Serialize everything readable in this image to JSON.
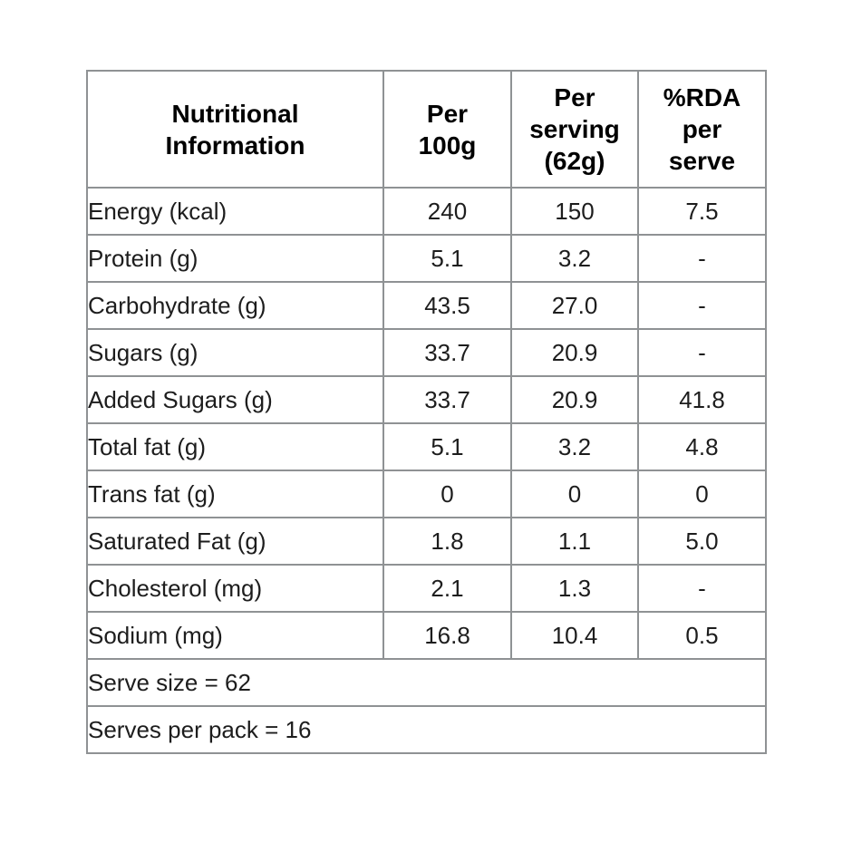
{
  "page": {
    "background_color": "#ffffff",
    "border_color": "#8f9294",
    "text_color": "#1d1d1d",
    "header_text_color": "#000000"
  },
  "table": {
    "header": {
      "col1": "Nutritional\nInformation",
      "col2": "Per\n100g",
      "col3": "Per\nserving\n(62g)",
      "col4": "%RDA\nper\nserve"
    },
    "rows": [
      {
        "label": "Energy (kcal)",
        "per_100g": "240",
        "per_serving": "150",
        "rda": "7.5"
      },
      {
        "label": "Protein (g)",
        "per_100g": "5.1",
        "per_serving": "3.2",
        "rda": "-"
      },
      {
        "label": "Carbohydrate (g)",
        "per_100g": "43.5",
        "per_serving": "27.0",
        "rda": "-"
      },
      {
        "label": "Sugars (g)",
        "per_100g": "33.7",
        "per_serving": "20.9",
        "rda": "-"
      },
      {
        "label": "Added Sugars (g)",
        "per_100g": "33.7",
        "per_serving": "20.9",
        "rda": "41.8"
      },
      {
        "label": "Total fat (g)",
        "per_100g": "5.1",
        "per_serving": "3.2",
        "rda": "4.8"
      },
      {
        "label": "Trans fat (g)",
        "per_100g": "0",
        "per_serving": "0",
        "rda": "0"
      },
      {
        "label": "Saturated Fat (g)",
        "per_100g": "1.8",
        "per_serving": "1.1",
        "rda": "5.0"
      },
      {
        "label": "Cholesterol (mg)",
        "per_100g": "2.1",
        "per_serving": "1.3",
        "rda": "-"
      },
      {
        "label": "Sodium (mg)",
        "per_100g": "16.8",
        "per_serving": "10.4",
        "rda": "0.5"
      }
    ],
    "footer": {
      "serve_size": "Serve size = 62",
      "serves_per_pack": "Serves per pack = 16"
    }
  }
}
